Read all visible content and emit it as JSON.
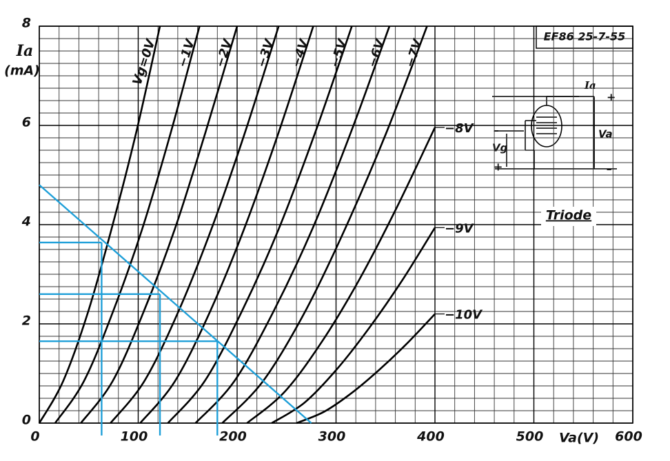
{
  "chart_data": {
    "type": "line",
    "title": "EF86 25-7-55",
    "subtitle": "Triode",
    "ylabel": "Ia",
    "yunit": "(mA)",
    "xlabel": "Va(V)",
    "xlim": [
      0,
      600
    ],
    "ylim": [
      0,
      8
    ],
    "xticks": [
      0,
      100,
      200,
      300,
      400,
      500,
      600
    ],
    "yticks": [
      0,
      2,
      4,
      6,
      8
    ],
    "grid": true,
    "grid_step_x": 20,
    "grid_step_y": 0.25,
    "series": [
      {
        "name": "Vg=0V",
        "color": "#000000",
        "x": [
          0,
          24,
          49,
          73,
          98,
          122
        ],
        "values": [
          0,
          0.84,
          2.22,
          3.91,
          5.86,
          8
        ]
      },
      {
        "name": "−1V",
        "color": "#000000",
        "x": [
          16,
          45,
          74,
          104,
          133,
          162
        ],
        "values": [
          0,
          0.84,
          2.22,
          3.91,
          5.86,
          8
        ]
      },
      {
        "name": "−2V",
        "color": "#000000",
        "x": [
          42,
          74,
          105,
          137,
          168,
          200
        ],
        "values": [
          0,
          0.84,
          2.22,
          3.91,
          5.86,
          8
        ]
      },
      {
        "name": "−3V",
        "color": "#000000",
        "x": [
          72,
          106,
          140,
          174,
          208,
          242
        ],
        "values": [
          0,
          0.84,
          2.22,
          3.91,
          5.86,
          8
        ]
      },
      {
        "name": "−4V",
        "color": "#000000",
        "x": [
          102,
          137,
          172,
          207,
          242,
          277
        ],
        "values": [
          0,
          0.84,
          2.22,
          3.91,
          5.86,
          8
        ]
      },
      {
        "name": "−5V",
        "color": "#000000",
        "x": [
          130,
          167,
          204,
          242,
          279,
          316
        ],
        "values": [
          0,
          0.84,
          2.22,
          3.91,
          5.86,
          8
        ]
      },
      {
        "name": "−6V",
        "color": "#000000",
        "x": [
          158,
          197,
          236,
          276,
          315,
          354
        ],
        "values": [
          0,
          0.84,
          2.22,
          3.91,
          5.86,
          8
        ]
      },
      {
        "name": "−7V",
        "color": "#000000",
        "x": [
          185,
          226,
          268,
          309,
          351,
          392
        ],
        "values": [
          0,
          0.84,
          2.22,
          3.91,
          5.86,
          8
        ]
      },
      {
        "name": "−8V",
        "color": "#000000",
        "x": [
          210,
          248,
          286,
          324,
          362,
          400
        ],
        "values": [
          0,
          0.63,
          1.65,
          2.91,
          4.37,
          5.96
        ]
      },
      {
        "name": "−9V",
        "color": "#000000",
        "x": [
          235,
          268,
          301,
          334,
          367,
          400
        ],
        "values": [
          0,
          0.41,
          1.09,
          1.93,
          2.88,
          3.94
        ]
      },
      {
        "name": "−10V",
        "color": "#000000",
        "x": [
          260,
          288,
          316,
          344,
          372,
          400
        ],
        "values": [
          0,
          0.23,
          0.61,
          1.08,
          1.61,
          2.2
        ]
      }
    ],
    "load_line": {
      "color": "#1e9fd8",
      "x": [
        0,
        275
      ],
      "values": [
        4.8,
        0
      ]
    },
    "operating_points": {
      "color": "#1e9fd8",
      "x": [
        63,
        122,
        180
      ],
      "values": [
        3.64,
        2.6,
        1.65
      ]
    },
    "inset": {
      "current": "Ia",
      "anode_voltage": "Va",
      "grid_voltage": "Vg",
      "plus": "+",
      "minus": "–"
    }
  }
}
